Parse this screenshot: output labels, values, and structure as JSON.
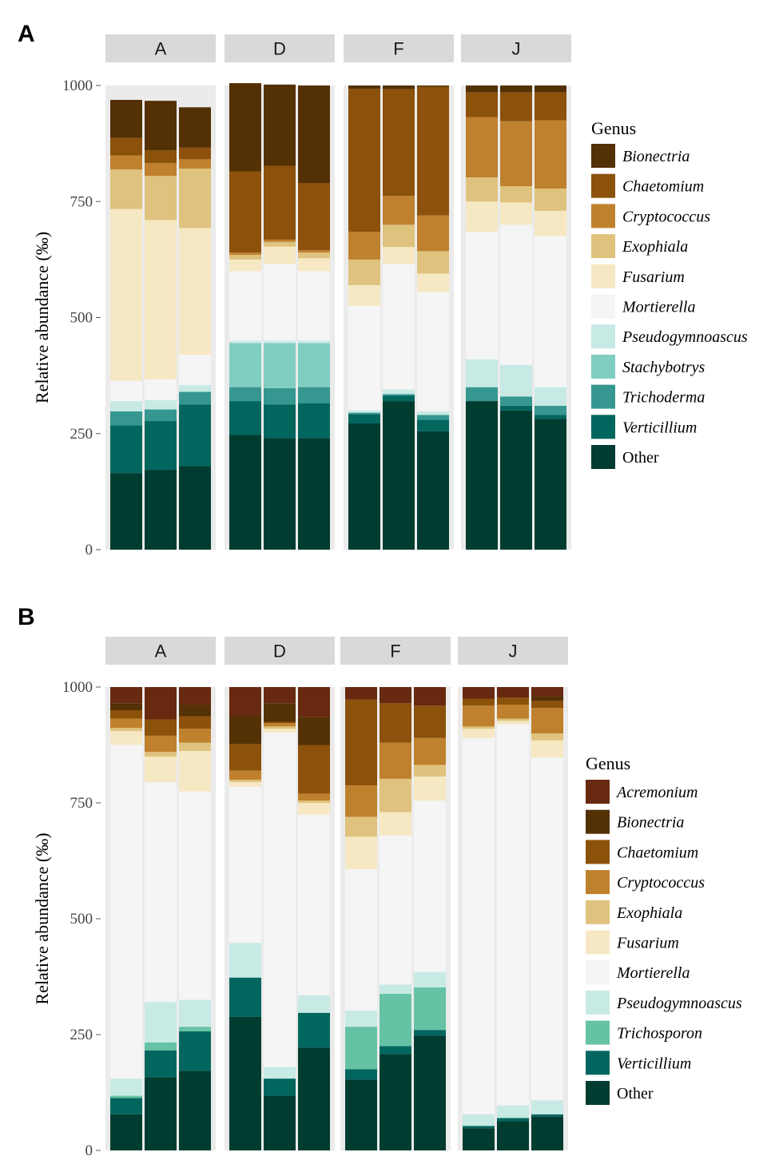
{
  "chart_data": [
    {
      "panel_label": "A",
      "type": "bar",
      "stacked": true,
      "ylabel": "Relative abundance (‰)",
      "ylim": [
        0,
        1000
      ],
      "yticks": [
        "0",
        "250",
        "500",
        "750",
        "1000"
      ],
      "facets": [
        "A",
        "D",
        "F",
        "J"
      ],
      "legend_title": "Genus",
      "legend_position": "right",
      "genera": [
        "Bionectria",
        "Chaetomium",
        "Cryptococcus",
        "Exophiala",
        "Fusarium",
        "Mortierella",
        "Pseudogymnoascus",
        "Stachybotrys",
        "Trichoderma",
        "Verticillium",
        "Other"
      ],
      "colors": {
        "Bionectria": "#543005",
        "Chaetomium": "#8c510a",
        "Cryptococcus": "#bf812d",
        "Exophiala": "#dfc27d",
        "Fusarium": "#f6e8c3",
        "Mortierella": "#f5f5f5",
        "Pseudogymnoascus": "#c7eae5",
        "Stachybotrys": "#80cdc1",
        "Trichoderma": "#35978f",
        "Verticillium": "#01665e",
        "Other": "#003c30"
      },
      "samples": [
        {
          "facet": "A",
          "values": {
            "Other": 165,
            "Verticillium": 103,
            "Trichoderma": 30,
            "Stachybotrys": 0,
            "Pseudogymnoascus": 22,
            "Mortierella": 44,
            "Fusarium": 370,
            "Exophiala": 85,
            "Cryptococcus": 30,
            "Chaetomium": 38,
            "Bionectria": 82
          }
        },
        {
          "facet": "A",
          "values": {
            "Other": 172,
            "Verticillium": 105,
            "Trichoderma": 25,
            "Stachybotrys": 0,
            "Pseudogymnoascus": 20,
            "Mortierella": 45,
            "Fusarium": 343,
            "Exophiala": 95,
            "Cryptococcus": 28,
            "Chaetomium": 27,
            "Bionectria": 107
          }
        },
        {
          "facet": "A",
          "values": {
            "Other": 180,
            "Verticillium": 133,
            "Trichoderma": 27,
            "Stachybotrys": 0,
            "Pseudogymnoascus": 15,
            "Mortierella": 65,
            "Fusarium": 273,
            "Exophiala": 128,
            "Cryptococcus": 20,
            "Chaetomium": 25,
            "Bionectria": 87
          }
        },
        {
          "facet": "D",
          "values": {
            "Other": 247,
            "Verticillium": 73,
            "Trichoderma": 30,
            "Stachybotrys": 95,
            "Pseudogymnoascus": 5,
            "Mortierella": 150,
            "Fusarium": 25,
            "Exophiala": 10,
            "Cryptococcus": 5,
            "Chaetomium": 175,
            "Bionectria": 190
          }
        },
        {
          "facet": "D",
          "values": {
            "Other": 240,
            "Verticillium": 73,
            "Trichoderma": 35,
            "Stachybotrys": 97,
            "Pseudogymnoascus": 5,
            "Mortierella": 165,
            "Fusarium": 38,
            "Exophiala": 10,
            "Cryptococcus": 5,
            "Chaetomium": 159,
            "Bionectria": 175
          }
        },
        {
          "facet": "D",
          "values": {
            "Other": 240,
            "Verticillium": 75,
            "Trichoderma": 35,
            "Stachybotrys": 95,
            "Pseudogymnoascus": 5,
            "Mortierella": 150,
            "Fusarium": 28,
            "Exophiala": 12,
            "Cryptococcus": 5,
            "Chaetomium": 145,
            "Bionectria": 210
          }
        },
        {
          "facet": "F",
          "values": {
            "Other": 272,
            "Verticillium": 20,
            "Trichoderma": 3,
            "Stachybotrys": 0,
            "Pseudogymnoascus": 5,
            "Mortierella": 225,
            "Fusarium": 45,
            "Exophiala": 55,
            "Cryptococcus": 60,
            "Chaetomium": 308,
            "Bionectria": 7
          }
        },
        {
          "facet": "F",
          "values": {
            "Other": 320,
            "Verticillium": 12,
            "Trichoderma": 3,
            "Stachybotrys": 0,
            "Pseudogymnoascus": 10,
            "Mortierella": 270,
            "Fusarium": 37,
            "Exophiala": 48,
            "Cryptococcus": 62,
            "Chaetomium": 230,
            "Bionectria": 8
          }
        },
        {
          "facet": "F",
          "values": {
            "Other": 255,
            "Verticillium": 25,
            "Trichoderma": 10,
            "Stachybotrys": 0,
            "Pseudogymnoascus": 8,
            "Mortierella": 257,
            "Fusarium": 40,
            "Exophiala": 48,
            "Cryptococcus": 77,
            "Chaetomium": 277,
            "Bionectria": 3
          }
        },
        {
          "facet": "J",
          "values": {
            "Other": 320,
            "Verticillium": 0,
            "Trichoderma": 30,
            "Stachybotrys": 0,
            "Pseudogymnoascus": 60,
            "Mortierella": 275,
            "Fusarium": 65,
            "Exophiala": 52,
            "Cryptococcus": 130,
            "Chaetomium": 53,
            "Bionectria": 15
          }
        },
        {
          "facet": "J",
          "values": {
            "Other": 300,
            "Verticillium": 10,
            "Trichoderma": 20,
            "Stachybotrys": 0,
            "Pseudogymnoascus": 68,
            "Mortierella": 302,
            "Fusarium": 48,
            "Exophiala": 35,
            "Cryptococcus": 140,
            "Chaetomium": 62,
            "Bionectria": 15
          }
        },
        {
          "facet": "J",
          "values": {
            "Other": 282,
            "Verticillium": 8,
            "Trichoderma": 20,
            "Stachybotrys": 0,
            "Pseudogymnoascus": 40,
            "Mortierella": 325,
            "Fusarium": 55,
            "Exophiala": 48,
            "Cryptococcus": 147,
            "Chaetomium": 60,
            "Bionectria": 15
          }
        }
      ]
    },
    {
      "panel_label": "B",
      "type": "bar",
      "stacked": true,
      "ylabel": "Relative abundance (‰)",
      "ylim": [
        0,
        1000
      ],
      "yticks": [
        "0",
        "250",
        "500",
        "750",
        "1000"
      ],
      "facets": [
        "A",
        "D",
        "F",
        "J"
      ],
      "legend_title": "Genus",
      "legend_position": "right",
      "genera": [
        "Acremonium",
        "Bionectria",
        "Chaetomium",
        "Cryptococcus",
        "Exophiala",
        "Fusarium",
        "Mortierella",
        "Pseudogymnoascus",
        "Trichosporon",
        "Verticillium",
        "Other"
      ],
      "colors": {
        "Acremonium": "#67290f",
        "Bionectria": "#543005",
        "Chaetomium": "#8c510a",
        "Cryptococcus": "#bf812d",
        "Exophiala": "#dfc27d",
        "Fusarium": "#f6e8c3",
        "Mortierella": "#f5f5f5",
        "Pseudogymnoascus": "#c7eae5",
        "Trichosporon": "#66c2a5",
        "Verticillium": "#01665e",
        "Other": "#003c30"
      },
      "samples": [
        {
          "facet": "A",
          "values": {
            "Other": 78,
            "Verticillium": 35,
            "Trichosporon": 5,
            "Pseudogymnoascus": 37,
            "Mortierella": 720,
            "Fusarium": 30,
            "Exophiala": 7,
            "Cryptococcus": 20,
            "Chaetomium": 18,
            "Bionectria": 15,
            "Acremonium": 35
          }
        },
        {
          "facet": "A",
          "values": {
            "Other": 158,
            "Verticillium": 58,
            "Trichosporon": 17,
            "Pseudogymnoascus": 87,
            "Mortierella": 475,
            "Fusarium": 55,
            "Exophiala": 10,
            "Cryptococcus": 35,
            "Chaetomium": 35,
            "Bionectria": 0,
            "Acremonium": 70
          }
        },
        {
          "facet": "A",
          "values": {
            "Other": 172,
            "Verticillium": 85,
            "Trichosporon": 10,
            "Pseudogymnoascus": 58,
            "Mortierella": 450,
            "Fusarium": 87,
            "Exophiala": 18,
            "Cryptococcus": 30,
            "Chaetomium": 27,
            "Bionectria": 25,
            "Acremonium": 38
          }
        },
        {
          "facet": "D",
          "values": {
            "Other": 288,
            "Verticillium": 85,
            "Trichosporon": 0,
            "Pseudogymnoascus": 75,
            "Mortierella": 337,
            "Fusarium": 10,
            "Exophiala": 5,
            "Cryptococcus": 20,
            "Chaetomium": 57,
            "Bionectria": 60,
            "Acremonium": 63
          }
        },
        {
          "facet": "D",
          "values": {
            "Other": 118,
            "Verticillium": 37,
            "Trichosporon": 0,
            "Pseudogymnoascus": 25,
            "Mortierella": 722,
            "Fusarium": 8,
            "Exophiala": 5,
            "Cryptococcus": 7,
            "Chaetomium": 3,
            "Bionectria": 40,
            "Acremonium": 35
          }
        },
        {
          "facet": "D",
          "values": {
            "Other": 222,
            "Verticillium": 75,
            "Trichosporon": 0,
            "Pseudogymnoascus": 38,
            "Mortierella": 390,
            "Fusarium": 25,
            "Exophiala": 5,
            "Cryptococcus": 15,
            "Chaetomium": 105,
            "Bionectria": 60,
            "Acremonium": 65
          }
        },
        {
          "facet": "F",
          "values": {
            "Other": 153,
            "Verticillium": 22,
            "Trichosporon": 92,
            "Pseudogymnoascus": 35,
            "Mortierella": 305,
            "Fusarium": 70,
            "Exophiala": 43,
            "Cryptococcus": 68,
            "Chaetomium": 185,
            "Bionectria": 0,
            "Acremonium": 27
          }
        },
        {
          "facet": "F",
          "values": {
            "Other": 208,
            "Verticillium": 17,
            "Trichosporon": 113,
            "Pseudogymnoascus": 20,
            "Mortierella": 322,
            "Fusarium": 50,
            "Exophiala": 72,
            "Cryptococcus": 78,
            "Chaetomium": 85,
            "Bionectria": 0,
            "Acremonium": 35
          }
        },
        {
          "facet": "F",
          "values": {
            "Other": 248,
            "Verticillium": 12,
            "Trichosporon": 92,
            "Pseudogymnoascus": 33,
            "Mortierella": 370,
            "Fusarium": 52,
            "Exophiala": 25,
            "Cryptococcus": 58,
            "Chaetomium": 70,
            "Bionectria": 0,
            "Acremonium": 40
          }
        },
        {
          "facet": "J",
          "values": {
            "Other": 48,
            "Verticillium": 5,
            "Trichosporon": 0,
            "Pseudogymnoascus": 25,
            "Mortierella": 812,
            "Fusarium": 20,
            "Exophiala": 5,
            "Cryptococcus": 45,
            "Chaetomium": 15,
            "Bionectria": 0,
            "Acremonium": 25
          }
        },
        {
          "facet": "J",
          "values": {
            "Other": 63,
            "Verticillium": 7,
            "Trichosporon": 0,
            "Pseudogymnoascus": 27,
            "Mortierella": 823,
            "Fusarium": 7,
            "Exophiala": 5,
            "Cryptococcus": 30,
            "Chaetomium": 15,
            "Bionectria": 0,
            "Acremonium": 23
          }
        },
        {
          "facet": "J",
          "values": {
            "Other": 73,
            "Verticillium": 5,
            "Trichosporon": 0,
            "Pseudogymnoascus": 30,
            "Mortierella": 740,
            "Fusarium": 37,
            "Exophiala": 15,
            "Cryptococcus": 55,
            "Chaetomium": 15,
            "Bionectria": 10,
            "Acremonium": 20
          }
        }
      ]
    }
  ]
}
